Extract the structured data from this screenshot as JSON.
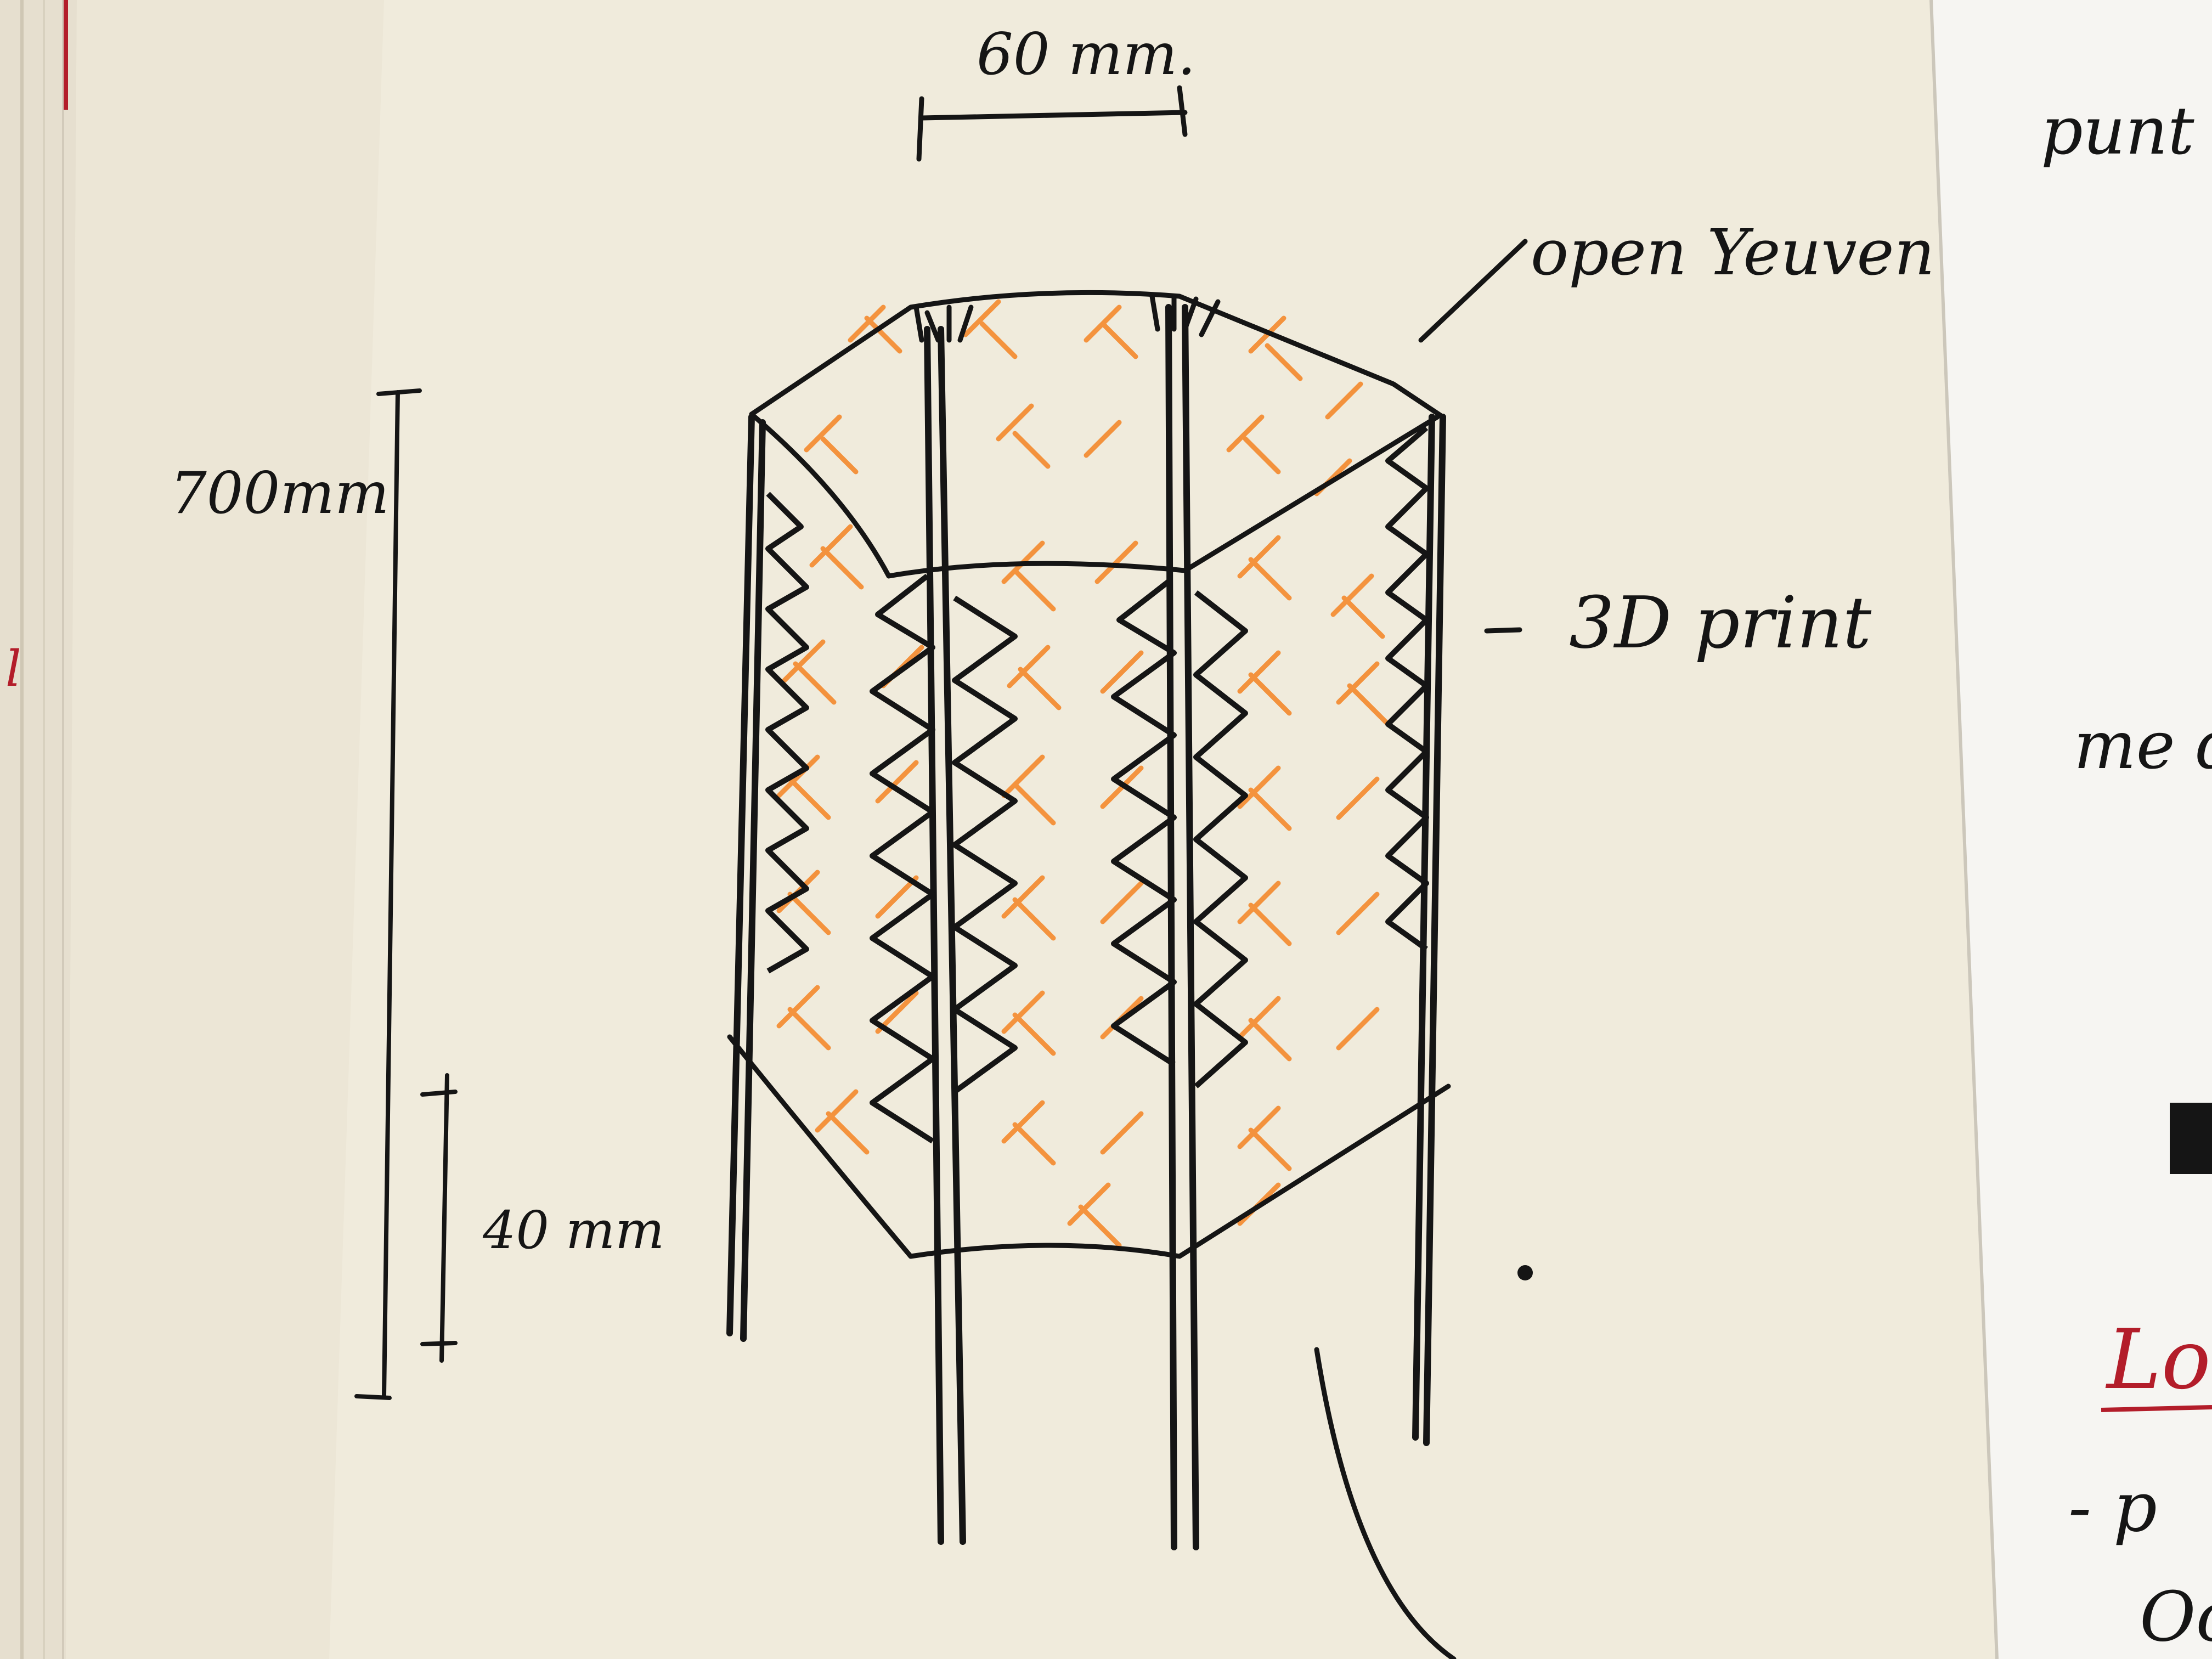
{
  "photo": {
    "subject": "notebook-sketch",
    "colors": {
      "page_left": "#f0ebdc",
      "page_right": "#f6f5f2",
      "ink": "#151515",
      "orange": "#f4892c",
      "red": "#b31d2a",
      "page_edge": "#e6dfcf"
    }
  },
  "annotations": {
    "width": "60 mm.",
    "height_total": "700mm",
    "height_legs": "40 mm",
    "top_note": "open Yeuven",
    "side_note": "3D print"
  },
  "right_page": {
    "top_word": "punt",
    "mid_word": "me d",
    "red_heading": "Log",
    "dash_line": "- p",
    "bottom_fragment": "Oc"
  },
  "left_page_edge": {
    "fragment": "l"
  }
}
